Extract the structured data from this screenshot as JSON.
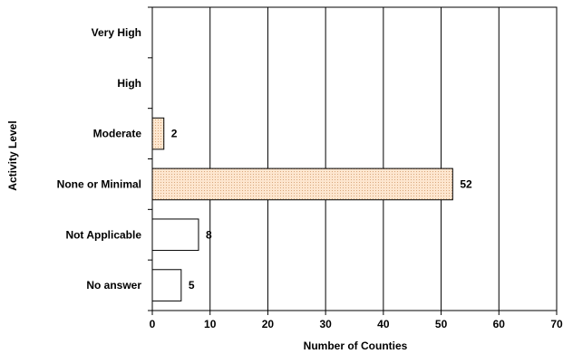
{
  "chart_data": {
    "type": "bar",
    "orientation": "horizontal",
    "xlabel": "Number of Counties",
    "ylabel": "Activity Level",
    "categories": [
      "Very High",
      "High",
      "Moderate",
      "None or Minimal",
      "Not Applicable",
      "No answer"
    ],
    "values": [
      0,
      0,
      2,
      52,
      8,
      5
    ],
    "data_labels": [
      "",
      "",
      "2",
      "52",
      "8",
      "5"
    ],
    "xlim": [
      0,
      70
    ],
    "xticks": [
      0,
      10,
      20,
      30,
      40,
      50,
      60,
      70
    ],
    "bar_fills": [
      "#ffffff",
      "#ffffff",
      "#fde6cf",
      "#fde6cf",
      "#ffffff",
      "#ffffff"
    ],
    "bar_patterned": [
      false,
      false,
      true,
      true,
      false,
      false
    ],
    "grid": "vertical",
    "legend": "none"
  }
}
